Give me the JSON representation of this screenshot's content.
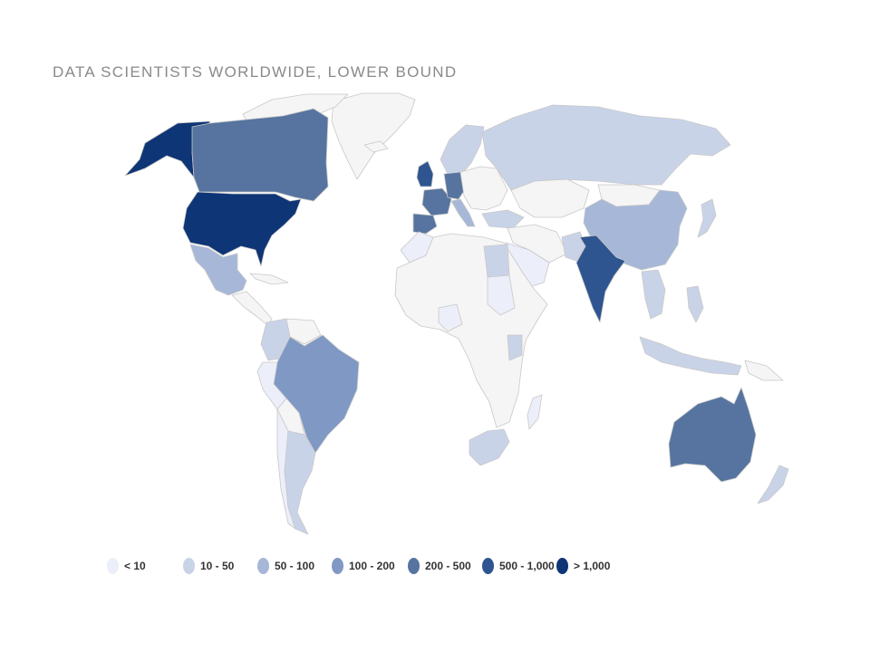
{
  "title": "DATA SCIENTISTS WORLDWIDE, LOWER BOUND",
  "legend": [
    {
      "label": "< 10",
      "color": "#eceefa"
    },
    {
      "label": "10 - 50",
      "color": "#c9d3e8"
    },
    {
      "label": "50 - 100",
      "color": "#a6b7d8"
    },
    {
      "label": "100 - 200",
      "color": "#7f98c4"
    },
    {
      "label": "200 - 500",
      "color": "#56749f"
    },
    {
      "label": "500 - 1,000",
      "color": "#2e5590"
    },
    {
      "label": "> 1,000",
      "color": "#0e3576"
    }
  ],
  "map_data": {
    "no_data_color": "#f5f5f5",
    "regions": [
      {
        "name": "United States",
        "bucket": "> 1,000"
      },
      {
        "name": "Alaska",
        "bucket": "> 1,000"
      },
      {
        "name": "Canada",
        "bucket": "200 - 500"
      },
      {
        "name": "India",
        "bucket": "500 - 1,000"
      },
      {
        "name": "United Kingdom",
        "bucket": "500 - 1,000"
      },
      {
        "name": "France",
        "bucket": "200 - 500"
      },
      {
        "name": "Germany",
        "bucket": "200 - 500"
      },
      {
        "name": "Spain",
        "bucket": "200 - 500"
      },
      {
        "name": "Australia",
        "bucket": "200 - 500"
      },
      {
        "name": "Brazil",
        "bucket": "100 - 200"
      },
      {
        "name": "Mexico",
        "bucket": "50 - 100"
      },
      {
        "name": "China",
        "bucket": "50 - 100"
      },
      {
        "name": "Italy",
        "bucket": "50 - 100"
      },
      {
        "name": "Russia",
        "bucket": "10 - 50"
      },
      {
        "name": "Scandinavia",
        "bucket": "10 - 50"
      },
      {
        "name": "Argentina",
        "bucket": "10 - 50"
      },
      {
        "name": "Colombia",
        "bucket": "10 - 50"
      },
      {
        "name": "South Africa",
        "bucket": "10 - 50"
      },
      {
        "name": "Turkey",
        "bucket": "10 - 50"
      },
      {
        "name": "Egypt",
        "bucket": "10 - 50"
      },
      {
        "name": "Pakistan",
        "bucket": "10 - 50"
      },
      {
        "name": "Indonesia",
        "bucket": "10 - 50"
      },
      {
        "name": "Philippines",
        "bucket": "10 - 50"
      },
      {
        "name": "New Zealand",
        "bucket": "10 - 50"
      },
      {
        "name": "Japan",
        "bucket": "10 - 50"
      },
      {
        "name": "Vietnam",
        "bucket": "10 - 50"
      },
      {
        "name": "Kenya",
        "bucket": "10 - 50"
      },
      {
        "name": "Peru",
        "bucket": "< 10"
      },
      {
        "name": "Chile",
        "bucket": "< 10"
      },
      {
        "name": "Saudi Arabia",
        "bucket": "< 10"
      },
      {
        "name": "Nigeria",
        "bucket": "< 10"
      },
      {
        "name": "Morocco",
        "bucket": "< 10"
      },
      {
        "name": "Sudan",
        "bucket": "< 10"
      },
      {
        "name": "Madagascar",
        "bucket": "< 10"
      },
      {
        "name": "Greenland",
        "bucket": "no data"
      },
      {
        "name": "Africa (rest)",
        "bucket": "no data"
      },
      {
        "name": "Central Asia",
        "bucket": "no data"
      },
      {
        "name": "Mongolia",
        "bucket": "no data"
      },
      {
        "name": "Middle East",
        "bucket": "no data"
      },
      {
        "name": "Eastern Europe",
        "bucket": "no data"
      },
      {
        "name": "Venezuela",
        "bucket": "no data"
      },
      {
        "name": "Bolivia",
        "bucket": "no data"
      },
      {
        "name": "Central America",
        "bucket": "no data"
      },
      {
        "name": "Cuba",
        "bucket": "no data"
      },
      {
        "name": "Iceland",
        "bucket": "no data"
      },
      {
        "name": "Papua New Guinea",
        "bucket": "no data"
      },
      {
        "name": "Arctic islands",
        "bucket": "no data"
      }
    ]
  }
}
